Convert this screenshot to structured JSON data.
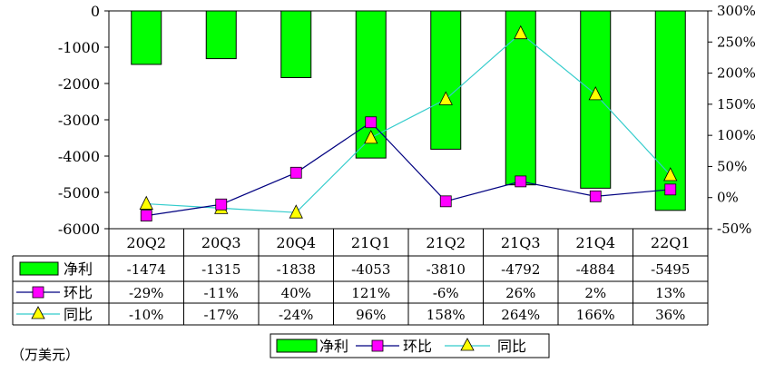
{
  "chart_data": {
    "type": "bar",
    "categories": [
      "20Q2",
      "20Q3",
      "20Q4",
      "21Q1",
      "21Q2",
      "21Q3",
      "21Q4",
      "22Q1"
    ],
    "y_left": {
      "min": -6000,
      "max": 0,
      "ticks": [
        "0",
        "-1000",
        "-2000",
        "-3000",
        "-4000",
        "-5000",
        "-6000"
      ]
    },
    "y_right": {
      "min": -50,
      "max": 300,
      "ticks": [
        "300%",
        "250%",
        "200%",
        "150%",
        "100%",
        "50%",
        "0%",
        "-50%"
      ]
    },
    "series": [
      {
        "name": "净利",
        "kind": "bar",
        "axis": "left",
        "color": "#00ff00",
        "values": [
          -1474,
          -1315,
          -1838,
          -4053,
          -3810,
          -4792,
          -4884,
          -5495
        ],
        "labels": [
          "-1474",
          "-1315",
          "-1838",
          "-4053",
          "-3810",
          "-4792",
          "-4884",
          "-5495"
        ]
      },
      {
        "name": "环比",
        "kind": "line",
        "axis": "right",
        "color": "#000080",
        "marker": "square",
        "marker_color": "#ff00ff",
        "values": [
          -29,
          -11,
          40,
          121,
          -6,
          26,
          2,
          13
        ],
        "labels": [
          "-29%",
          "-11%",
          "40%",
          "121%",
          "-6%",
          "26%",
          "2%",
          "13%"
        ]
      },
      {
        "name": "同比",
        "kind": "line",
        "axis": "right",
        "color": "#33cccc",
        "marker": "triangle",
        "marker_color": "#ffff00",
        "values": [
          -10,
          -17,
          -24,
          96,
          158,
          264,
          166,
          36
        ],
        "labels": [
          "-10%",
          "-17%",
          "-24%",
          "96%",
          "158%",
          "264%",
          "166%",
          "36%"
        ]
      }
    ],
    "legend_position": "bottom",
    "grid": false
  },
  "unit_note": "（万美元）"
}
